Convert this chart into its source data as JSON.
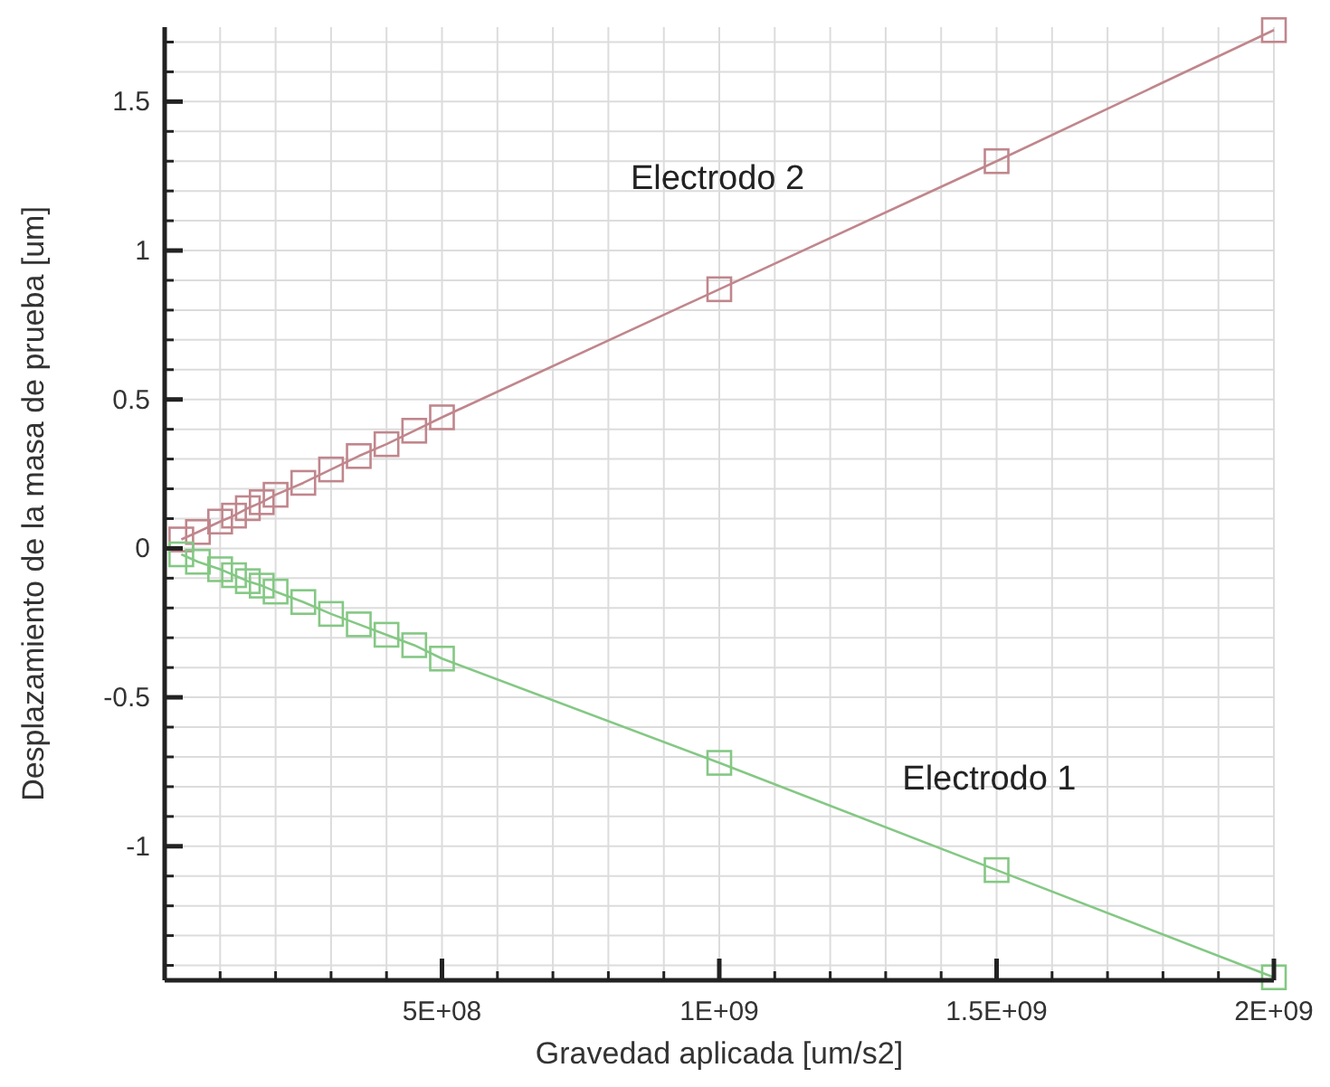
{
  "chart_data": {
    "type": "line",
    "xlabel": "Gravedad aplicada [um/s2]",
    "ylabel": "Desplazamiento de la masa de prueba [um]",
    "xlim": [
      0,
      2000000000
    ],
    "ylim": [
      -1.45,
      1.75
    ],
    "xticks": [
      {
        "value": 500000000,
        "label": "5E+08"
      },
      {
        "value": 1000000000,
        "label": "1E+09"
      },
      {
        "value": 1500000000,
        "label": "1.5E+09"
      },
      {
        "value": 2000000000,
        "label": "2E+09"
      }
    ],
    "yticks": [
      -1,
      -0.5,
      0,
      0.5,
      1,
      1.5
    ],
    "grid": true,
    "marker": "square",
    "line_style": "solid",
    "x": [
      30000000,
      60000000,
      100000000,
      125000000,
      150000000,
      175000000,
      200000000,
      250000000,
      300000000,
      350000000,
      400000000,
      450000000,
      500000000,
      1000000000,
      1500000000,
      2000000000
    ],
    "series": [
      {
        "name": "Electrodo 2",
        "color": "#c0868c",
        "values": [
          0.03,
          0.055,
          0.09,
          0.11,
          0.135,
          0.155,
          0.18,
          0.22,
          0.265,
          0.31,
          0.35,
          0.395,
          0.44,
          0.87,
          1.3,
          1.74
        ]
      },
      {
        "name": "Electrodo 1",
        "color": "#84c884",
        "values": [
          -0.02,
          -0.045,
          -0.07,
          -0.09,
          -0.11,
          -0.125,
          -0.145,
          -0.18,
          -0.22,
          -0.255,
          -0.29,
          -0.325,
          -0.37,
          -0.72,
          -1.08,
          -1.44
        ]
      }
    ]
  }
}
